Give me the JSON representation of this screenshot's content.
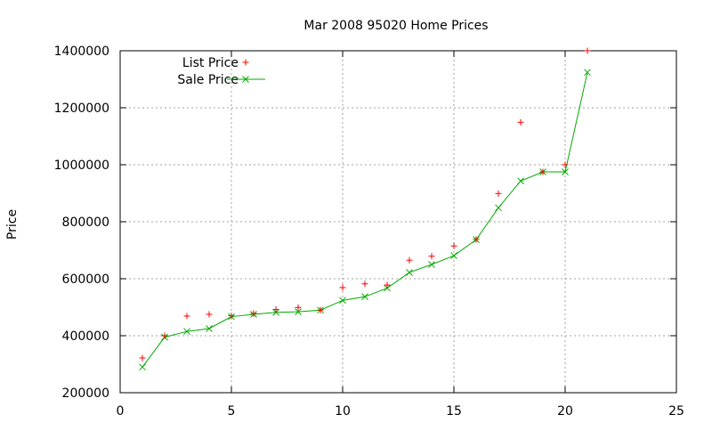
{
  "chart_data": {
    "type": "scatter",
    "title": "Mar 2008 95020 Home Prices",
    "xlabel": "",
    "ylabel": "Price",
    "xlim": [
      0,
      25
    ],
    "ylim": [
      200000,
      1400000
    ],
    "xticks": [
      0,
      5,
      10,
      15,
      20,
      25
    ],
    "yticks": [
      200000,
      400000,
      600000,
      800000,
      1000000,
      1200000,
      1400000
    ],
    "grid": true,
    "legend_position": "top-left",
    "series": [
      {
        "name": "List Price",
        "style": "points",
        "marker": "plus",
        "color": "#ff0000",
        "points": [
          [
            1,
            322000
          ],
          [
            2,
            400000
          ],
          [
            3,
            469000
          ],
          [
            4,
            475000
          ],
          [
            5,
            470000
          ],
          [
            6,
            478000
          ],
          [
            7,
            492000
          ],
          [
            8,
            499000
          ],
          [
            9,
            490000
          ],
          [
            10,
            569000
          ],
          [
            11,
            582000
          ],
          [
            12,
            578000
          ],
          [
            13,
            665000
          ],
          [
            14,
            679000
          ],
          [
            15,
            715000
          ],
          [
            16,
            738000
          ],
          [
            17,
            899000
          ],
          [
            18,
            1149000
          ],
          [
            19,
            975000
          ],
          [
            20,
            1000000
          ],
          [
            21,
            1400000
          ]
        ]
      },
      {
        "name": "Sale Price",
        "style": "linespoints",
        "marker": "x",
        "color": "#00aa00",
        "points": [
          [
            1,
            290000
          ],
          [
            2,
            395000
          ],
          [
            3,
            415000
          ],
          [
            4,
            425000
          ],
          [
            5,
            467000
          ],
          [
            6,
            475000
          ],
          [
            7,
            482000
          ],
          [
            8,
            484000
          ],
          [
            9,
            490000
          ],
          [
            10,
            524000
          ],
          [
            11,
            537000
          ],
          [
            12,
            567000
          ],
          [
            13,
            622000
          ],
          [
            14,
            650000
          ],
          [
            15,
            681000
          ],
          [
            16,
            737000
          ],
          [
            17,
            849000
          ],
          [
            18,
            943000
          ],
          [
            19,
            975000
          ],
          [
            20,
            975000
          ],
          [
            21,
            1324000
          ]
        ]
      }
    ]
  }
}
